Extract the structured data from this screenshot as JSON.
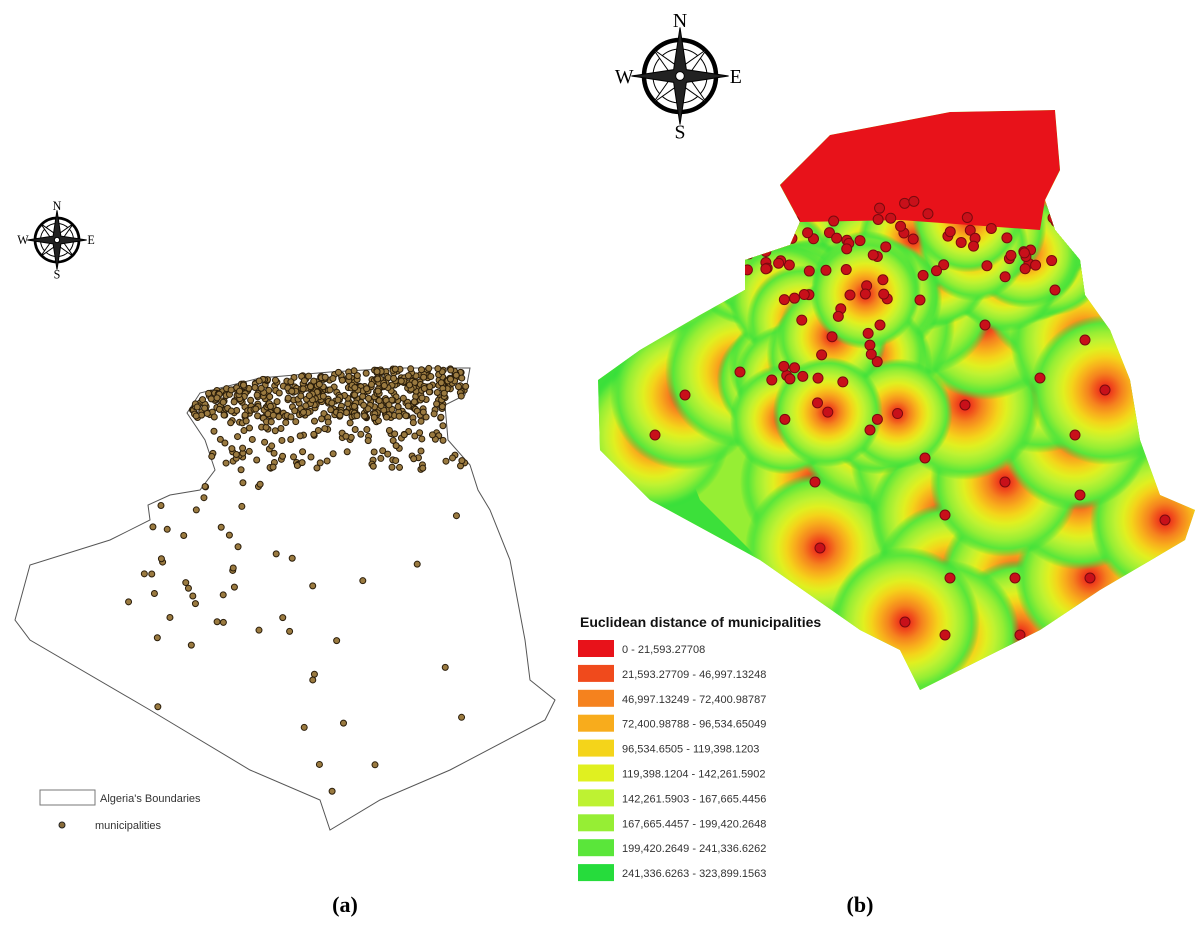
{
  "panels": [
    {
      "label": "(a)",
      "compass": {
        "n": "N",
        "s": "S",
        "e": "E",
        "w": "W"
      },
      "legend": [
        {
          "label": "Algeria's Boundaries"
        },
        {
          "label": "municipalities"
        }
      ]
    },
    {
      "label": "(b)",
      "compass": {
        "n": "N",
        "s": "S",
        "e": "E",
        "w": "W"
      },
      "legend": {
        "title": "Euclidean distance of municipalities",
        "classes": [
          {
            "label": "0 - 21,593.27708",
            "color": "#e8121a"
          },
          {
            "label": "21,593.27709 - 46,997.13248",
            "color": "#f04a1c"
          },
          {
            "label": "46,997.13249 - 72,400.98787",
            "color": "#f5821e"
          },
          {
            "label": "72,400.98788 - 96,534.65049",
            "color": "#f8ac1c"
          },
          {
            "label": "96,534.6505 - 119,398.1203",
            "color": "#f4d41a"
          },
          {
            "label": "119,398.1204 - 142,261.5902",
            "color": "#e0f020"
          },
          {
            "label": "142,261.5903 - 167,665.4456",
            "color": "#bef232"
          },
          {
            "label": "167,665.4457 - 199,420.2648",
            "color": "#96ee34"
          },
          {
            "label": "199,420.2649 - 241,336.6262",
            "color": "#5ae63a"
          },
          {
            "label": "241,336.6263 - 323,899.1563",
            "color": "#26dc3c"
          }
        ]
      }
    }
  ]
}
